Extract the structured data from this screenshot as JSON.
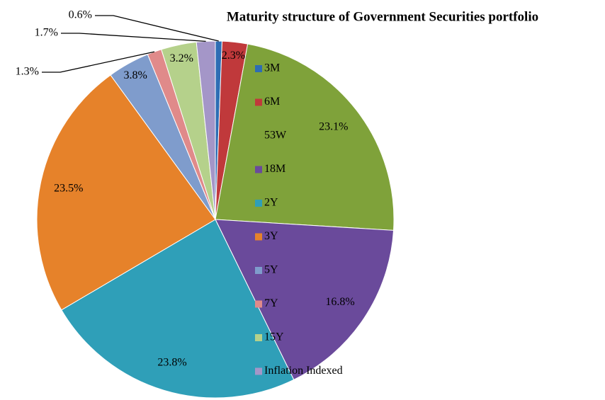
{
  "chart_data": {
    "type": "pie",
    "title": "Maturity structure of Government Securities portfolio",
    "categories": [
      "3M",
      "6M",
      "53W",
      "18M",
      "2Y",
      "3Y",
      "5Y",
      "7Y",
      "15Y",
      "Inflation Indexed"
    ],
    "values": [
      0.6,
      2.3,
      23.1,
      16.8,
      23.8,
      23.5,
      3.8,
      1.3,
      3.2,
      1.7
    ],
    "value_labels": [
      "0.6%",
      "2.3%",
      "23.1%",
      "16.8%",
      "23.8%",
      "23.5%",
      "3.8%",
      "1.3%",
      "3.2%",
      "1.7%"
    ],
    "colors": [
      "#2e6db4",
      "#c0393b",
      "#7fa23a",
      "#6a4a9b",
      "#2f9fb8",
      "#e6822a",
      "#7f9ccc",
      "#e08a8a",
      "#b5d18b",
      "#a496c8"
    ],
    "legend": "right"
  }
}
